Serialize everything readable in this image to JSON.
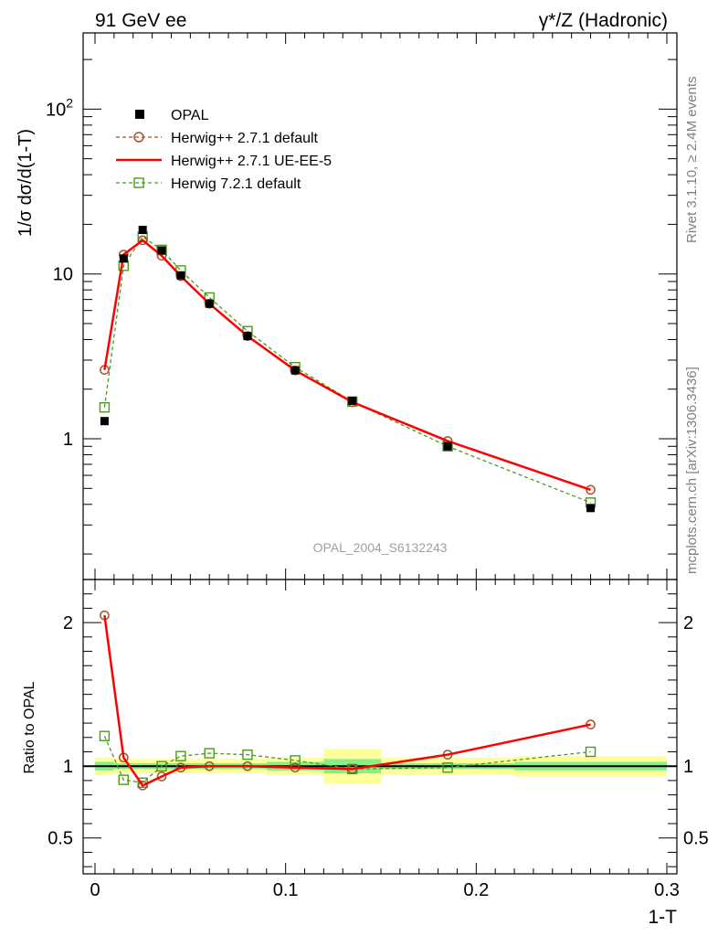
{
  "header": {
    "left": "91 GeV ee",
    "right": "γ*/Z (Hadronic)"
  },
  "side_labels": {
    "rivet": "Rivet 3.1.10, ≥ 2.4M events",
    "mcplots": "mcplots.cern.ch [arXiv:1306.3436]"
  },
  "watermark": "OPAL_2004_S6132243",
  "chart_data": {
    "type": "line",
    "xlabel": "1-T",
    "ylabel": "1/σ dσ/d(1-T)",
    "xlim": [
      0,
      0.3
    ],
    "x_ticks": [
      {
        "value": 0,
        "label": "0"
      },
      {
        "value": 0.1,
        "label": "0.1"
      },
      {
        "value": 0.2,
        "label": "0.2"
      },
      {
        "value": 0.3,
        "label": "0.3"
      }
    ],
    "main": {
      "yscale": "log",
      "ylim": [
        0.14,
        290
      ],
      "y_ticks": [
        {
          "value": 1,
          "label": "1"
        },
        {
          "value": 10,
          "label": "10"
        },
        {
          "value": 100,
          "label": "10^2"
        }
      ]
    },
    "ratio": {
      "ylabel": "Ratio to OPAL",
      "ylim": [
        0.25,
        2.3
      ],
      "y_ticks": [
        {
          "value": 0.5,
          "label": "0.5"
        },
        {
          "value": 1,
          "label": "1"
        },
        {
          "value": 2,
          "label": "2"
        }
      ]
    },
    "legend_position": "top-left",
    "x_bins": [
      [
        0.0,
        0.01
      ],
      [
        0.01,
        0.02
      ],
      [
        0.02,
        0.03
      ],
      [
        0.03,
        0.04
      ],
      [
        0.04,
        0.05
      ],
      [
        0.05,
        0.07
      ],
      [
        0.07,
        0.09
      ],
      [
        0.09,
        0.12
      ],
      [
        0.12,
        0.15
      ],
      [
        0.15,
        0.22
      ],
      [
        0.22,
        0.3
      ]
    ],
    "x": [
      0.005,
      0.015,
      0.025,
      0.035,
      0.045,
      0.06,
      0.08,
      0.105,
      0.135,
      0.185,
      0.26
    ],
    "data": {
      "name": "OPAL",
      "values": [
        1.28,
        12.4,
        18.5,
        13.9,
        9.8,
        6.6,
        4.2,
        2.6,
        1.7,
        0.9,
        0.38
      ]
    },
    "band_stat": [
      0.03,
      0.02,
      0.02,
      0.02,
      0.02,
      0.02,
      0.02,
      0.03,
      0.05,
      0.02,
      0.03
    ],
    "band_total": [
      0.06,
      0.05,
      0.05,
      0.05,
      0.05,
      0.05,
      0.05,
      0.06,
      0.12,
      0.06,
      0.07
    ],
    "series": [
      {
        "name": "Herwig++ 2.7.1 default",
        "color": "#a0522d",
        "style": "dashed",
        "marker": "circle",
        "values": [
          2.62,
          13.1,
          16.0,
          12.9,
          9.7,
          6.6,
          4.2,
          2.6,
          1.67,
          0.97,
          0.49
        ],
        "ratio": [
          2.05,
          1.06,
          0.865,
          0.928,
          0.99,
          1.0,
          1.0,
          0.99,
          0.98,
          1.08,
          1.29
        ]
      },
      {
        "name": "Herwig++ 2.7.1 UE-EE-5",
        "color": "#ff0000",
        "style": "solid",
        "marker": "none",
        "values": [
          2.62,
          13.1,
          16.0,
          12.9,
          9.7,
          6.6,
          4.2,
          2.6,
          1.67,
          0.97,
          0.49
        ],
        "ratio": [
          2.05,
          1.06,
          0.865,
          0.928,
          0.99,
          1.0,
          1.0,
          0.99,
          0.98,
          1.08,
          1.29
        ]
      },
      {
        "name": "Herwig 7.2.1 default",
        "color": "#4c9a1c",
        "style": "dashed",
        "marker": "square",
        "values": [
          1.55,
          11.2,
          16.8,
          14.0,
          10.5,
          7.2,
          4.5,
          2.72,
          1.68,
          0.9,
          0.41
        ],
        "ratio": [
          1.21,
          0.905,
          0.885,
          1.0,
          1.07,
          1.09,
          1.08,
          1.04,
          0.98,
          0.99,
          1.1
        ]
      }
    ]
  }
}
